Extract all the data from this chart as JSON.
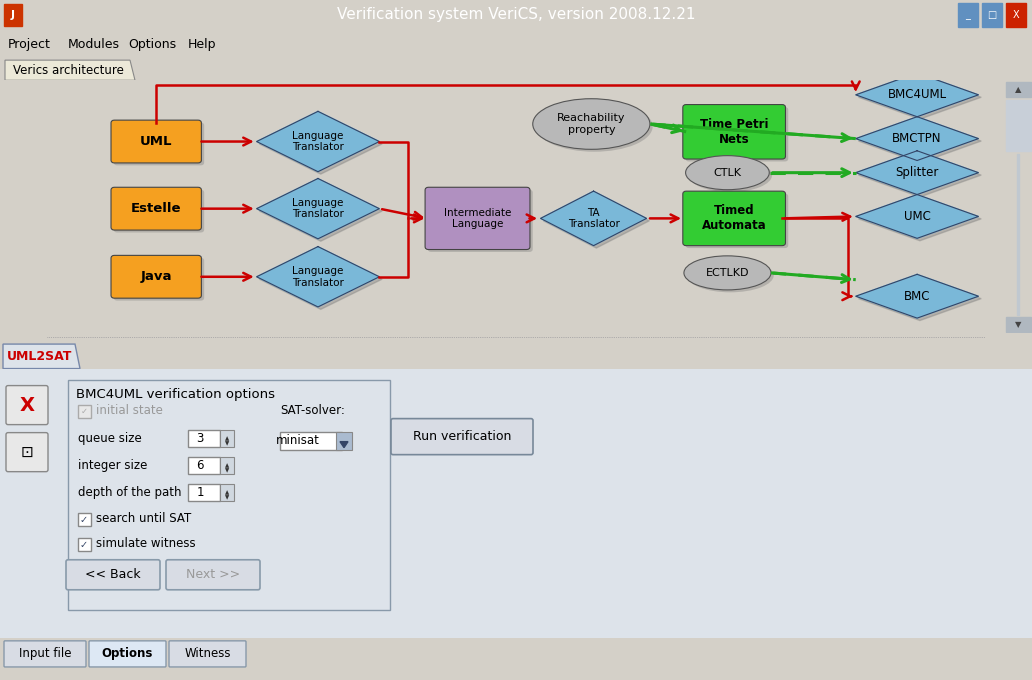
{
  "title_bar": "Verification system VeriCS, version 2008.12.21",
  "title_bar_bg": "#4a86c8",
  "menu_items": [
    "Project",
    "Modules",
    "Options",
    "Help"
  ],
  "tab1": "Verics architecture",
  "tab2": "UML2SAT",
  "window_bg": "#d4d0c8",
  "diagram_bg": "white",
  "options_title": "BMC4UML verification options",
  "sat_solver_label": "SAT-solver:",
  "sat_solver_value": "minisat",
  "checkbox_search": "search until SAT",
  "checkbox_simulate": "simulate witness",
  "btn_back": "<< Back",
  "btn_next": "Next >>",
  "btn_run": "Run verification",
  "bottom_tabs": [
    "Input file",
    "Options",
    "Witness"
  ],
  "active_bottom_tab": "Options",
  "orange": "#f5a020",
  "blue_diamond": "#7ab8d8",
  "green_node": "#33cc33",
  "purple_node": "#b090c0",
  "gray_node": "#b8b8b8",
  "red_arrow": "#cc0000",
  "green_arrow": "#22aa22"
}
